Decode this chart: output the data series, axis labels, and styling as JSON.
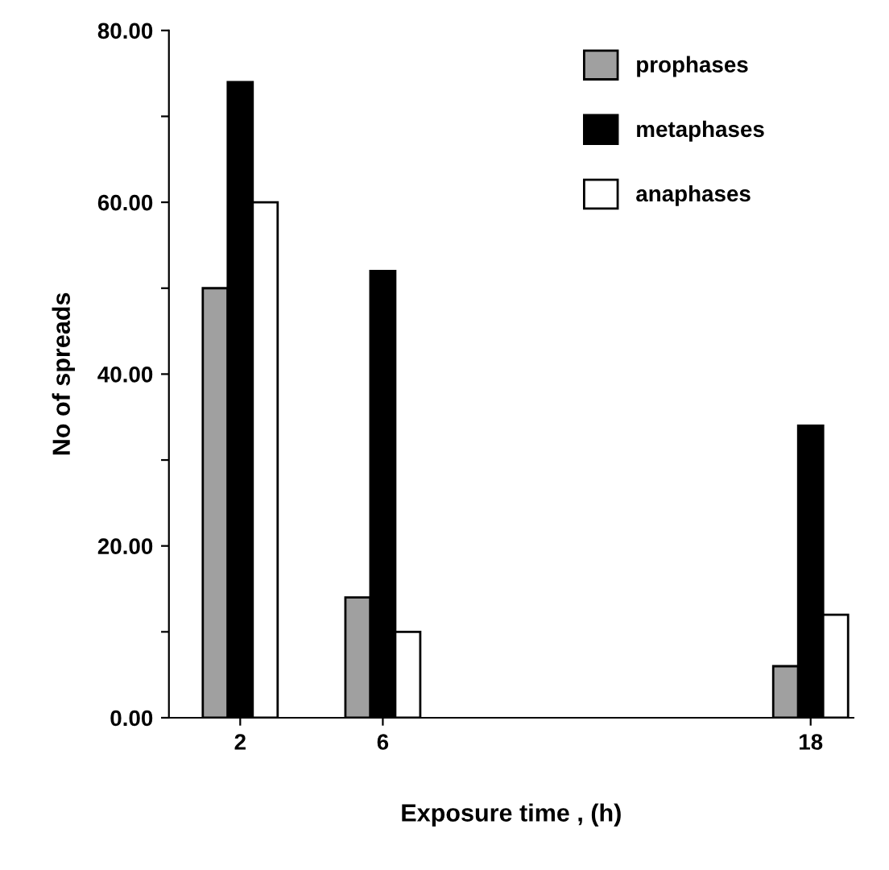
{
  "chart_data": {
    "type": "bar",
    "xlabel": "Exposure time , (h)",
    "ylabel": "No of spreads",
    "x": [
      2,
      6,
      18
    ],
    "series": [
      {
        "name": "prophases",
        "color": "#a0a0a0",
        "values": [
          50,
          14,
          6
        ]
      },
      {
        "name": "metaphases",
        "color": "#000000",
        "values": [
          74,
          52,
          34
        ]
      },
      {
        "name": "anaphases",
        "color": "#ffffff",
        "values": [
          60,
          10,
          12
        ]
      }
    ],
    "xlim": [
      0,
      19.2
    ],
    "xticks": [
      2,
      6,
      18
    ],
    "ylim": [
      0,
      80
    ],
    "yticks": [
      {
        "value": 0,
        "label": "0.00"
      },
      {
        "value": 10,
        "label": null
      },
      {
        "value": 20,
        "label": "20.00"
      },
      {
        "value": 30,
        "label": null
      },
      {
        "value": 40,
        "label": "40.00"
      },
      {
        "value": 50,
        "label": null
      },
      {
        "value": 60,
        "label": "60.00"
      },
      {
        "value": 70,
        "label": null
      },
      {
        "value": 80,
        "label": "80.00"
      }
    ],
    "grid": false,
    "legend": "top right"
  }
}
